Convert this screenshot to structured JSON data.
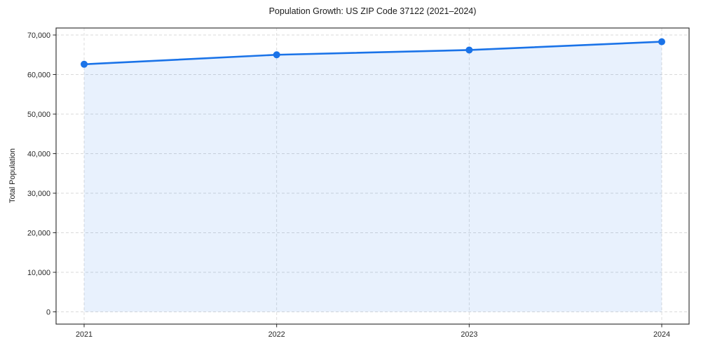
{
  "chart_data": {
    "type": "line",
    "title": "Population Growth: US ZIP Code 37122 (2021–2024)",
    "ylabel": "Total Population",
    "categories": [
      "2021",
      "2022",
      "2023",
      "2024"
    ],
    "values": [
      62600,
      65000,
      66200,
      68300
    ],
    "ylim": [
      0,
      70000
    ],
    "yticks": [
      0,
      10000,
      20000,
      30000,
      40000,
      50000,
      60000,
      70000
    ],
    "ytick_labels": [
      "0",
      "10,000",
      "20,000",
      "30,000",
      "40,000",
      "50,000",
      "60,000",
      "70,000"
    ],
    "grid": "dashed, horizontal and vertical",
    "legend": "none",
    "marker": "circle",
    "area_fill": true,
    "colors": {
      "line": "#1a73e8",
      "marker": "#1a73e8",
      "area": "rgba(26,115,232,0.10)",
      "grid": "#d9d9d9",
      "axis": "#262626",
      "text": "#262626",
      "background": "#ffffff"
    }
  }
}
